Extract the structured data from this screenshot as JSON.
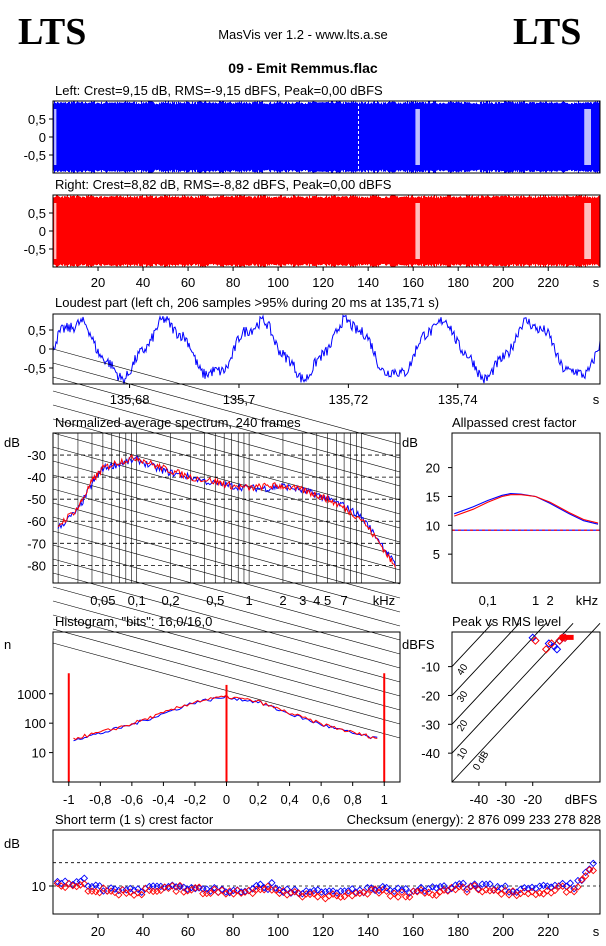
{
  "header": {
    "logo_left": "LTS",
    "logo_right": "LTS",
    "app_title": "MasVis ver 1.2 - www.lts.a.se",
    "track_title": "09 - Emit Remmus.flac"
  },
  "colors": {
    "left": "#0000ff",
    "right": "#ff0000",
    "grid": "#000000"
  },
  "chart_data": [
    {
      "id": "left_waveform",
      "type": "area",
      "title": "Left: Crest=9,15 dB, RMS=-9,15 dBFS, Peak=0,00 dBFS",
      "color": "#0000ff",
      "yticks": [
        "0,5",
        "0",
        "-0,5"
      ],
      "ylim": [
        -1,
        1
      ],
      "marker_x": 135.71
    },
    {
      "id": "right_waveform",
      "type": "area",
      "title": "Right: Crest=8,82 dB, RMS=-8,82 dBFS, Peak=0,00 dBFS",
      "color": "#ff0000",
      "yticks": [
        "0,5",
        "0",
        "-0,5"
      ],
      "ylim": [
        -1,
        1
      ],
      "xticks": [
        "20",
        "40",
        "60",
        "80",
        "100",
        "120",
        "140",
        "160",
        "180",
        "200",
        "220",
        "s"
      ],
      "xlim": [
        0,
        243
      ]
    },
    {
      "id": "loudest_part",
      "type": "line",
      "title": "Loudest part (left  ch, 206 samples >95% during 20 ms at 135,71 s)",
      "color": "#0000ff",
      "yticks": [
        "0,5",
        "0",
        "-0,5"
      ],
      "xticks": [
        "135,68",
        "135,7",
        "135,72",
        "135,74",
        "s"
      ],
      "xlim": [
        135.666,
        135.766
      ]
    },
    {
      "id": "spectrum",
      "type": "line",
      "title": "Normalized average spectrum, 240 frames",
      "ylabel": "dB",
      "yticks": [
        "-30",
        "-40",
        "-50",
        "-60",
        "-70",
        "-80"
      ],
      "xticks": [
        "0,05",
        "0,1",
        "0,2",
        "0,5",
        "1",
        "2",
        "3",
        "4",
        "5",
        "7",
        "kHz"
      ],
      "ylim": [
        -88,
        -20
      ],
      "series": [
        {
          "color": "#0000ff",
          "x": [
            0.02,
            0.03,
            0.04,
            0.05,
            0.07,
            0.1,
            0.15,
            0.2,
            0.3,
            0.5,
            0.7,
            1,
            1.5,
            2,
            3,
            4,
            5,
            7,
            10,
            15,
            20
          ],
          "y": [
            -63,
            -55,
            -43,
            -36,
            -34,
            -32,
            -36,
            -38,
            -40,
            -43,
            -44,
            -45,
            -45,
            -44,
            -46,
            -48,
            -50,
            -53,
            -58,
            -70,
            -80
          ]
        },
        {
          "color": "#ff0000",
          "x": [
            0.02,
            0.03,
            0.04,
            0.05,
            0.07,
            0.1,
            0.15,
            0.2,
            0.3,
            0.5,
            0.7,
            1,
            1.5,
            2,
            3,
            4,
            5,
            7,
            10,
            15,
            20
          ],
          "y": [
            -62,
            -54,
            -42,
            -36,
            -33,
            -31,
            -35,
            -37,
            -40,
            -42,
            -44,
            -45,
            -44,
            -44,
            -46,
            -48,
            -50,
            -54,
            -59,
            -71,
            -81
          ]
        }
      ]
    },
    {
      "id": "allpassed_crest",
      "type": "line",
      "title": "Allpassed crest factor",
      "ylabel": "dB",
      "yticks": [
        "20",
        "15",
        "10",
        "5"
      ],
      "xticks": [
        "0,1",
        "1",
        "2",
        "kHz"
      ],
      "ylim": [
        0,
        26
      ],
      "baseline": 9.15,
      "series": [
        {
          "color": "#0000ff",
          "x": [
            0.02,
            0.05,
            0.1,
            0.2,
            0.3,
            0.5,
            1,
            2,
            5,
            10,
            20
          ],
          "y": [
            12.0,
            13.2,
            14.3,
            15.2,
            15.5,
            15.4,
            15.0,
            13.8,
            12.0,
            10.8,
            10.2
          ]
        },
        {
          "color": "#ff0000",
          "x": [
            0.02,
            0.05,
            0.1,
            0.2,
            0.3,
            0.5,
            1,
            2,
            5,
            10,
            20
          ],
          "y": [
            11.6,
            12.8,
            14.0,
            15.0,
            15.3,
            15.3,
            15.0,
            14.0,
            12.2,
            11.0,
            10.4
          ]
        }
      ]
    },
    {
      "id": "histogram",
      "type": "line",
      "title": "Histogram, \"bits\": 16,0/16,0",
      "ylabel": "n",
      "yticks": [
        "1000",
        "100",
        "10"
      ],
      "xticks": [
        "-1",
        "-0,8",
        "-0,6",
        "-0,4",
        "-0,2",
        "0",
        "0,2",
        "0,4",
        "0,6",
        "0,8",
        "1"
      ],
      "xlim": [
        -1.1,
        1.1
      ],
      "log_y": true,
      "series": [
        {
          "color": "#0000ff",
          "x": [
            -0.97,
            -0.8,
            -0.6,
            -0.4,
            -0.2,
            0,
            0.2,
            0.4,
            0.6,
            0.8,
            0.97
          ],
          "y": [
            28,
            45,
            90,
            210,
            520,
            780,
            520,
            210,
            90,
            45,
            28
          ]
        },
        {
          "color": "#ff0000",
          "x": [
            -0.97,
            -0.8,
            -0.6,
            -0.4,
            -0.2,
            0,
            0.2,
            0.4,
            0.6,
            0.8,
            0.97
          ],
          "y": [
            30,
            48,
            95,
            220,
            540,
            800,
            540,
            220,
            95,
            48,
            30
          ]
        }
      ]
    },
    {
      "id": "peak_vs_rms",
      "type": "scatter",
      "title": "Peak vs RMS level",
      "ylabel": "dBFS",
      "yticks": [
        "-10",
        "-20",
        "-30",
        "-40"
      ],
      "xticks": [
        "-40",
        "-30",
        "-20",
        "dBFS"
      ],
      "diag_labels": [
        "40",
        "30",
        "20",
        "10",
        "0 dB"
      ],
      "series": [
        {
          "color": "#0000ff",
          "x": [
            -9,
            -10,
            -12,
            -14,
            -8,
            -20,
            -11
          ],
          "y": [
            0,
            -1,
            -3,
            -2,
            0,
            0,
            -4
          ]
        },
        {
          "color": "#ff0000",
          "x": [
            -9,
            -8,
            -13,
            -15,
            -10,
            -19
          ],
          "y": [
            0,
            0,
            -2,
            -4,
            -1,
            -1
          ]
        }
      ]
    },
    {
      "id": "short_term_crest",
      "type": "scatter",
      "title": "Short term (1 s) crest factor",
      "checksum": "Checksum (energy):  2 876 099 233 278 828",
      "ylabel": "dB",
      "yticks": [
        "10"
      ],
      "xticks": [
        "20",
        "40",
        "60",
        "80",
        "100",
        "120",
        "140",
        "160",
        "180",
        "200",
        "220",
        "s"
      ],
      "xlim": [
        0,
        243
      ]
    }
  ]
}
